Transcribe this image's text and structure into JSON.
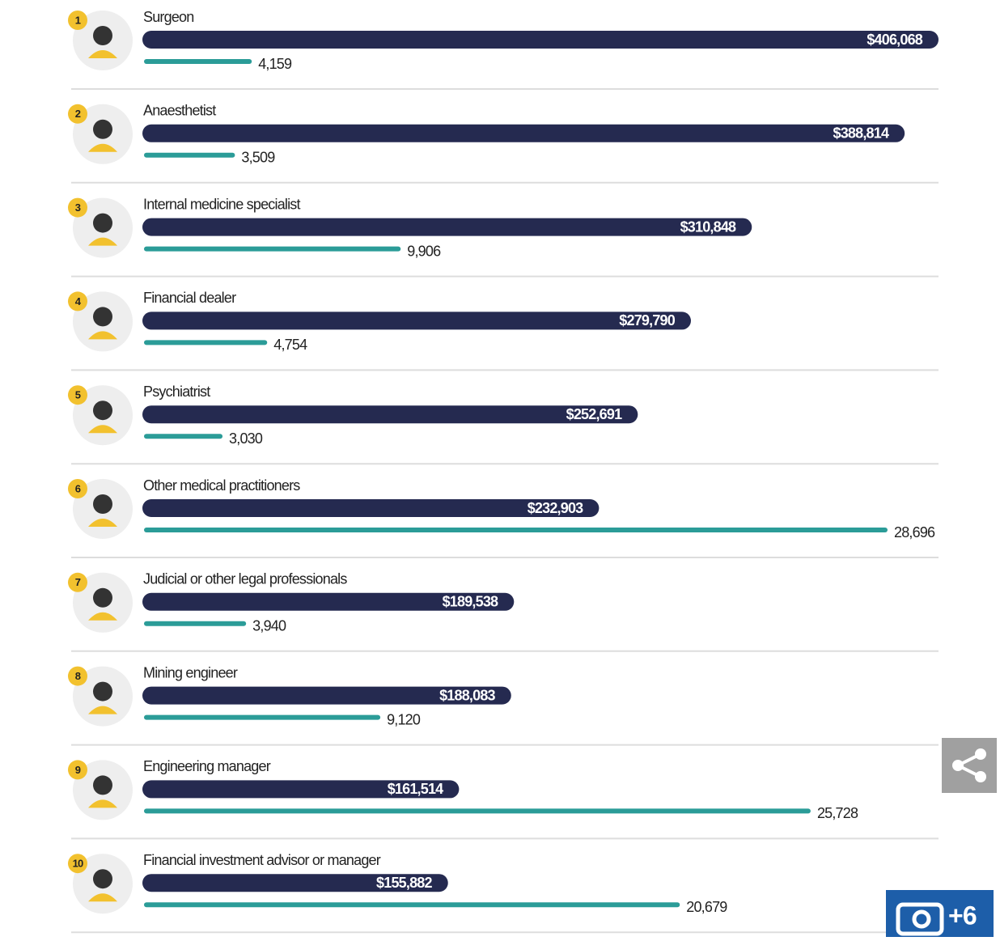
{
  "chart_data": {
    "type": "paired-bar",
    "ranks": [
      1,
      2,
      3,
      4,
      5,
      6,
      7,
      8,
      9,
      10
    ],
    "categories": [
      "Surgeon",
      "Anaesthetist",
      "Internal medicine specialist",
      "Financial dealer",
      "Psychiatrist",
      "Other medical practitioners",
      "Judicial or other legal professionals",
      "Mining engineer",
      "Engineering manager",
      "Financial investment advisor or manager"
    ],
    "series": [
      {
        "color": "#252a50",
        "values": [
          406068,
          388814,
          310848,
          279790,
          252691,
          232903,
          189538,
          188083,
          161514,
          155882
        ],
        "value_labels": [
          "$406,068",
          "$388,814",
          "$310,848",
          "$279,790",
          "$252,691",
          "$232,903",
          "$189,538",
          "$188,083",
          "$161,514",
          "$155,882"
        ]
      },
      {
        "color": "#2b9c98",
        "values": [
          4159,
          3509,
          9906,
          4754,
          3030,
          28696,
          3940,
          9120,
          25728,
          20679
        ],
        "value_labels": [
          "4,159",
          "3,509",
          "9,906",
          "4,754",
          "3,030",
          "28,696",
          "3,940",
          "9,120",
          "25,728",
          "20,679"
        ]
      }
    ]
  },
  "gallery": {
    "label": "+6"
  }
}
